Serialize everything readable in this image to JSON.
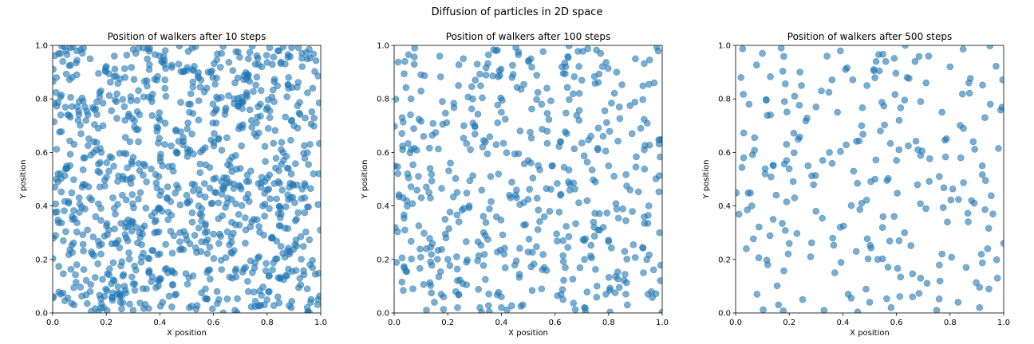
{
  "figure": {
    "suptitle": "Diffusion of particles in 2D space",
    "marker_color": "#1f77b4"
  },
  "chart_data": [
    {
      "type": "scatter",
      "title": "Position of walkers after 10 steps",
      "xlabel": "X position",
      "ylabel": "Y position",
      "xlim": [
        0,
        1
      ],
      "ylim": [
        0,
        1
      ],
      "xticks": [
        "0.0",
        "0.2",
        "0.4",
        "0.6",
        "0.8",
        "1.0"
      ],
      "yticks": [
        "0.0",
        "0.2",
        "0.4",
        "0.6",
        "0.8",
        "1.0"
      ],
      "grid": false,
      "n_points": 1000,
      "seed": 10,
      "points": [
        [
          0.05,
          0.98
        ],
        [
          0.09,
          0.89
        ],
        [
          0.14,
          0.95
        ],
        [
          0.18,
          0.83
        ],
        [
          0.23,
          0.96
        ],
        [
          0.27,
          0.88
        ],
        [
          0.31,
          0.97
        ],
        [
          0.36,
          0.91
        ],
        [
          0.42,
          0.98
        ],
        [
          0.47,
          0.93
        ],
        [
          0.52,
          0.99
        ],
        [
          0.58,
          0.9
        ],
        [
          0.63,
          0.97
        ],
        [
          0.68,
          0.86
        ],
        [
          0.73,
          0.95
        ],
        [
          0.78,
          0.92
        ],
        [
          0.84,
          0.98
        ],
        [
          0.88,
          0.88
        ],
        [
          0.93,
          0.97
        ],
        [
          0.97,
          0.84
        ],
        [
          0.03,
          0.74
        ],
        [
          0.08,
          0.63
        ],
        [
          0.12,
          0.77
        ],
        [
          0.17,
          0.69
        ],
        [
          0.22,
          0.58
        ],
        [
          0.27,
          0.72
        ],
        [
          0.32,
          0.64
        ],
        [
          0.37,
          0.79
        ],
        [
          0.41,
          0.55
        ],
        [
          0.46,
          0.68
        ],
        [
          0.51,
          0.75
        ],
        [
          0.56,
          0.61
        ],
        [
          0.61,
          0.71
        ],
        [
          0.66,
          0.57
        ],
        [
          0.71,
          0.79
        ],
        [
          0.76,
          0.66
        ],
        [
          0.81,
          0.73
        ],
        [
          0.86,
          0.6
        ],
        [
          0.9,
          0.7
        ],
        [
          0.96,
          0.63
        ],
        [
          0.02,
          0.52
        ],
        [
          0.06,
          0.41
        ],
        [
          0.11,
          0.47
        ],
        [
          0.16,
          0.36
        ],
        [
          0.21,
          0.53
        ],
        [
          0.26,
          0.44
        ],
        [
          0.3,
          0.34
        ],
        [
          0.35,
          0.49
        ],
        [
          0.4,
          0.39
        ],
        [
          0.45,
          0.53
        ],
        [
          0.5,
          0.44
        ],
        [
          0.55,
          0.37
        ],
        [
          0.6,
          0.5
        ],
        [
          0.65,
          0.41
        ],
        [
          0.7,
          0.54
        ],
        [
          0.75,
          0.35
        ],
        [
          0.8,
          0.46
        ],
        [
          0.85,
          0.39
        ],
        [
          0.89,
          0.52
        ],
        [
          0.94,
          0.43
        ],
        [
          0.04,
          0.27
        ],
        [
          0.09,
          0.18
        ],
        [
          0.13,
          0.31
        ],
        [
          0.18,
          0.22
        ],
        [
          0.23,
          0.12
        ],
        [
          0.28,
          0.27
        ],
        [
          0.33,
          0.19
        ],
        [
          0.38,
          0.3
        ],
        [
          0.43,
          0.15
        ],
        [
          0.48,
          0.24
        ],
        [
          0.53,
          0.29
        ],
        [
          0.58,
          0.16
        ],
        [
          0.62,
          0.26
        ],
        [
          0.67,
          0.13
        ],
        [
          0.72,
          0.31
        ],
        [
          0.77,
          0.21
        ],
        [
          0.82,
          0.28
        ],
        [
          0.87,
          0.14
        ],
        [
          0.91,
          0.25
        ],
        [
          0.96,
          0.18
        ],
        [
          0.03,
          0.07
        ],
        [
          0.08,
          0.03
        ],
        [
          0.14,
          0.08
        ],
        [
          0.19,
          0.02
        ],
        [
          0.25,
          0.06
        ],
        [
          0.3,
          0.01
        ],
        [
          0.35,
          0.09
        ],
        [
          0.41,
          0.04
        ],
        [
          0.46,
          0.07
        ],
        [
          0.51,
          0.02
        ],
        [
          0.57,
          0.09
        ],
        [
          0.62,
          0.05
        ],
        [
          0.68,
          0.01
        ],
        [
          0.73,
          0.08
        ],
        [
          0.79,
          0.03
        ],
        [
          0.84,
          0.06
        ],
        [
          0.89,
          0.02
        ],
        [
          0.95,
          0.09
        ],
        [
          0.99,
          0.05
        ],
        [
          0.12,
          0.58
        ]
      ]
    },
    {
      "type": "scatter",
      "title": "Position of walkers after 100 steps",
      "xlabel": "X position",
      "ylabel": "Y position",
      "xlim": [
        0,
        1
      ],
      "ylim": [
        0,
        1
      ],
      "xticks": [
        "0.0",
        "0.2",
        "0.4",
        "0.6",
        "0.8",
        "1.0"
      ],
      "yticks": [
        "0.0",
        "0.2",
        "0.4",
        "0.6",
        "0.8",
        "1.0"
      ],
      "grid": false,
      "n_points": 500,
      "seed": 100,
      "points": [
        [
          0.04,
          0.94
        ],
        [
          0.1,
          0.89
        ],
        [
          0.17,
          0.96
        ],
        [
          0.24,
          0.85
        ],
        [
          0.31,
          0.93
        ],
        [
          0.38,
          0.98
        ],
        [
          0.44,
          0.88
        ],
        [
          0.51,
          0.95
        ],
        [
          0.57,
          0.84
        ],
        [
          0.64,
          0.92
        ],
        [
          0.7,
          0.87
        ],
        [
          0.77,
          0.97
        ],
        [
          0.83,
          0.9
        ],
        [
          0.9,
          0.95
        ],
        [
          0.97,
          0.86
        ],
        [
          0.03,
          0.73
        ],
        [
          0.11,
          0.66
        ],
        [
          0.18,
          0.79
        ],
        [
          0.26,
          0.7
        ],
        [
          0.33,
          0.62
        ],
        [
          0.4,
          0.75
        ],
        [
          0.47,
          0.68
        ],
        [
          0.55,
          0.78
        ],
        [
          0.62,
          0.64
        ],
        [
          0.69,
          0.72
        ],
        [
          0.76,
          0.61
        ],
        [
          0.84,
          0.77
        ],
        [
          0.92,
          0.69
        ],
        [
          0.05,
          0.52
        ],
        [
          0.13,
          0.45
        ],
        [
          0.21,
          0.56
        ],
        [
          0.28,
          0.4
        ],
        [
          0.36,
          0.51
        ],
        [
          0.43,
          0.44
        ],
        [
          0.5,
          0.57
        ],
        [
          0.58,
          0.38
        ],
        [
          0.65,
          0.49
        ],
        [
          0.72,
          0.42
        ],
        [
          0.8,
          0.55
        ],
        [
          0.88,
          0.46
        ],
        [
          0.95,
          0.4
        ],
        [
          0.04,
          0.31
        ],
        [
          0.12,
          0.24
        ],
        [
          0.19,
          0.35
        ],
        [
          0.27,
          0.19
        ],
        [
          0.34,
          0.29
        ],
        [
          0.41,
          0.22
        ],
        [
          0.49,
          0.33
        ],
        [
          0.56,
          0.17
        ],
        [
          0.63,
          0.27
        ],
        [
          0.71,
          0.2
        ],
        [
          0.78,
          0.32
        ],
        [
          0.86,
          0.23
        ],
        [
          0.93,
          0.15
        ],
        [
          0.07,
          0.09
        ],
        [
          0.15,
          0.04
        ],
        [
          0.23,
          0.08
        ],
        [
          0.32,
          0.02
        ],
        [
          0.4,
          0.06
        ],
        [
          0.48,
          0.03
        ],
        [
          0.55,
          0.09
        ],
        [
          0.63,
          0.05
        ],
        [
          0.71,
          0.02
        ],
        [
          0.79,
          0.07
        ],
        [
          0.87,
          0.03
        ],
        [
          0.96,
          0.08
        ],
        [
          0.99,
          0.3
        ]
      ]
    },
    {
      "type": "scatter",
      "title": "Position of walkers after 500 steps",
      "xlabel": "X position",
      "ylabel": "Y position",
      "xlim": [
        0,
        1
      ],
      "ylim": [
        0,
        1
      ],
      "xticks": [
        "0.0",
        "0.2",
        "0.4",
        "0.6",
        "0.8",
        "1.0"
      ],
      "yticks": [
        "0.0",
        "0.2",
        "0.4",
        "0.6",
        "0.8",
        "1.0"
      ],
      "grid": false,
      "n_points": 250,
      "seed": 500,
      "points": [
        [
          0.02,
          0.88
        ],
        [
          0.1,
          0.97
        ],
        [
          0.17,
          0.99
        ],
        [
          0.24,
          0.9
        ],
        [
          0.32,
          0.83
        ],
        [
          0.41,
          0.91
        ],
        [
          0.49,
          0.85
        ],
        [
          0.56,
          0.94
        ],
        [
          0.64,
          0.88
        ],
        [
          0.72,
          0.96
        ],
        [
          0.8,
          0.92
        ],
        [
          0.87,
          0.86
        ],
        [
          0.95,
          0.78
        ],
        [
          0.05,
          0.78
        ],
        [
          0.13,
          0.74
        ],
        [
          0.22,
          0.81
        ],
        [
          0.3,
          0.77
        ],
        [
          0.38,
          0.75
        ],
        [
          0.47,
          0.7
        ],
        [
          0.54,
          0.68
        ],
        [
          0.61,
          0.72
        ],
        [
          0.69,
          0.79
        ],
        [
          0.77,
          0.75
        ],
        [
          0.85,
          0.69
        ],
        [
          0.93,
          0.73
        ],
        [
          0.03,
          0.58
        ],
        [
          0.11,
          0.52
        ],
        [
          0.19,
          0.63
        ],
        [
          0.27,
          0.55
        ],
        [
          0.35,
          0.6
        ],
        [
          0.44,
          0.53
        ],
        [
          0.52,
          0.5
        ],
        [
          0.6,
          0.57
        ],
        [
          0.68,
          0.61
        ],
        [
          0.76,
          0.51
        ],
        [
          0.84,
          0.58
        ],
        [
          0.92,
          0.55
        ],
        [
          0.06,
          0.4
        ],
        [
          0.14,
          0.35
        ],
        [
          0.22,
          0.43
        ],
        [
          0.3,
          0.38
        ],
        [
          0.39,
          0.32
        ],
        [
          0.47,
          0.41
        ],
        [
          0.55,
          0.36
        ],
        [
          0.63,
          0.3
        ],
        [
          0.71,
          0.39
        ],
        [
          0.79,
          0.34
        ],
        [
          0.88,
          0.42
        ],
        [
          0.96,
          0.37
        ],
        [
          0.04,
          0.24
        ],
        [
          0.12,
          0.18
        ],
        [
          0.2,
          0.26
        ],
        [
          0.28,
          0.21
        ],
        [
          0.37,
          0.15
        ],
        [
          0.45,
          0.23
        ],
        [
          0.53,
          0.2
        ],
        [
          0.61,
          0.27
        ],
        [
          0.69,
          0.13
        ],
        [
          0.77,
          0.22
        ],
        [
          0.86,
          0.17
        ],
        [
          0.94,
          0.24
        ],
        [
          0.08,
          0.07
        ],
        [
          0.16,
          0.03
        ],
        [
          0.25,
          0.05
        ],
        [
          0.33,
          0.01
        ],
        [
          0.42,
          0.07
        ],
        [
          0.5,
          0.04
        ],
        [
          0.58,
          0.02
        ],
        [
          0.66,
          0.06
        ],
        [
          0.75,
          0.01
        ],
        [
          0.83,
          0.04
        ],
        [
          0.91,
          0.02
        ],
        [
          1.0,
          0.26
        ]
      ]
    }
  ]
}
